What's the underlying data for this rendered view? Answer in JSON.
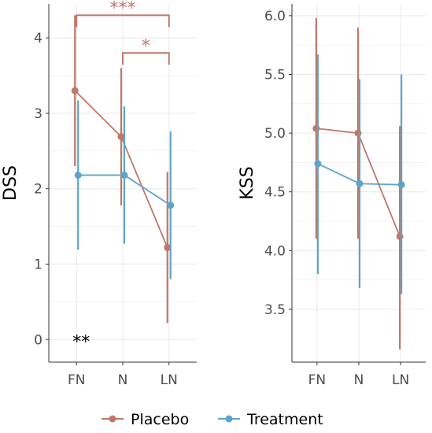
{
  "colors": {
    "placebo": "#c0776a",
    "treatment": "#5ea4c9",
    "grid": "#ebebeb",
    "axis": "#333333"
  },
  "chart_data": [
    {
      "type": "line",
      "ylabel": "DSS",
      "categories": [
        "FN",
        "N",
        "LN"
      ],
      "ylim": [
        -0.3,
        4.45
      ],
      "yticks": [
        "0",
        "1",
        "2",
        "3",
        "4"
      ],
      "grid": true,
      "series": [
        {
          "name": "Placebo",
          "values": [
            3.3,
            2.69,
            1.22
          ],
          "lower": [
            2.3,
            1.78,
            0.22
          ],
          "upper": [
            4.3,
            3.6,
            2.22
          ]
        },
        {
          "name": "Treatment",
          "values": [
            2.18,
            2.18,
            1.78
          ],
          "lower": [
            1.19,
            1.27,
            0.8
          ],
          "upper": [
            3.17,
            3.09,
            2.76
          ]
        }
      ],
      "annotations": [
        {
          "text": "***",
          "from": "FN",
          "to": "LN",
          "y": 4.3,
          "color_series": "Placebo"
        },
        {
          "text": "*",
          "from": "N",
          "to": "LN",
          "y": 3.8,
          "color_series": "Placebo"
        },
        {
          "text": "**",
          "at": "FN",
          "y": 0,
          "color": "#000000"
        }
      ]
    },
    {
      "type": "line",
      "ylabel": "KSS",
      "categories": [
        "FN",
        "N",
        "LN"
      ],
      "ylim": [
        3.05,
        6.1
      ],
      "yticks": [
        "3.5",
        "4.0",
        "4.5",
        "5.0",
        "5.5",
        "6.0"
      ],
      "grid": true,
      "series": [
        {
          "name": "Placebo",
          "values": [
            5.04,
            5.0,
            4.12
          ],
          "lower": [
            4.1,
            4.1,
            3.16
          ],
          "upper": [
            5.98,
            5.9,
            5.06
          ]
        },
        {
          "name": "Treatment",
          "values": [
            4.74,
            4.57,
            4.56
          ],
          "lower": [
            3.8,
            3.68,
            3.63
          ],
          "upper": [
            5.67,
            5.46,
            5.5
          ]
        }
      ]
    }
  ],
  "legend": {
    "position": "bottom",
    "items": [
      {
        "label": "Placebo",
        "series": "Placebo"
      },
      {
        "label": "Treatment",
        "series": "Treatment"
      }
    ]
  }
}
